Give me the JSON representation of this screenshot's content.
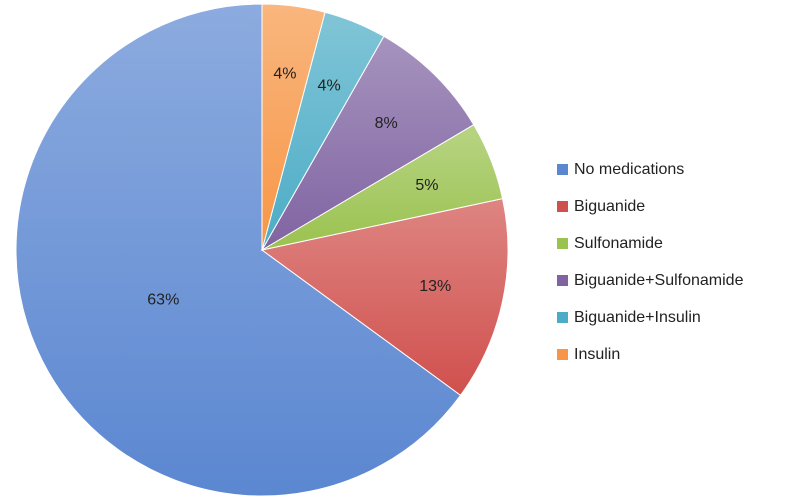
{
  "chart_data": {
    "type": "pie",
    "title": "",
    "legend_position": "right",
    "slices": [
      {
        "name": "No medications",
        "value": 63,
        "label": "63%",
        "color": "#5b87d1"
      },
      {
        "name": "Biguanide",
        "value": 13,
        "label": "13%",
        "color": "#d0504d"
      },
      {
        "name": "Sulfonamide",
        "value": 5,
        "label": "5%",
        "color": "#9ac24f"
      },
      {
        "name": "Biguanide+Sulfonamide",
        "value": 8,
        "label": "8%",
        "color": "#8064a2"
      },
      {
        "name": "Biguanide+Insulin",
        "value": 4,
        "label": "4%",
        "color": "#4bacc6"
      },
      {
        "name": "Insulin",
        "value": 4,
        "label": "4%",
        "color": "#f79646"
      }
    ]
  }
}
